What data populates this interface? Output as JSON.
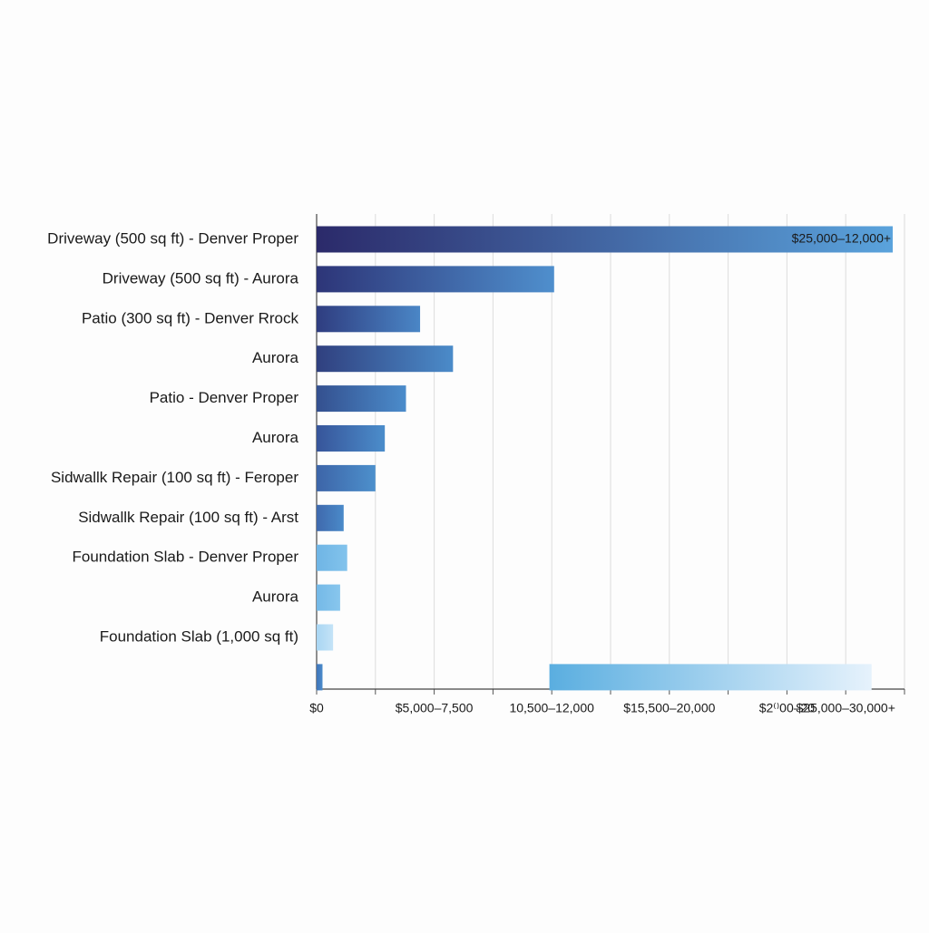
{
  "chart_data": {
    "type": "hbar",
    "categories": [
      "Driveway (500 sq ft) - Denver Proper",
      "Driveway (500 sq ft)   - Aurora",
      "Patio (300 sq ft) - Denver Rrock",
      "Aurora",
      "Patio - Denver Proper",
      "Aurora",
      "Sidwallk Repair (100 sq ft) - Feroper",
      "Sidwallk Repair (100 sq ft) - Arst",
      "Foundation Slab - Denver Proper",
      "Aurora",
      "Foundation Slab (1,000 sq ft)",
      null
    ],
    "values": [
      24500,
      10100,
      4400,
      5800,
      3800,
      2900,
      2500,
      1150,
      1300,
      1000,
      700,
      250
    ],
    "value_labels": [
      "$25,000–12,000+",
      null,
      null,
      null,
      null,
      null,
      null,
      null,
      null,
      null,
      null,
      null
    ],
    "colors": [
      [
        "#2b2a6a",
        "#5aa3dc"
      ],
      [
        "#2d3578",
        "#4f8fcd"
      ],
      [
        "#2f3d80",
        "#4a86c6"
      ],
      [
        "#30407f",
        "#4b8bc9"
      ],
      [
        "#34508f",
        "#4b8ccb"
      ],
      [
        "#37559a",
        "#4b8dcb"
      ],
      [
        "#3d65a8",
        "#4d90cc"
      ],
      [
        "#3f69ad",
        "#4a8ac9"
      ],
      [
        "#6fb5e5",
        "#82c3ec"
      ],
      [
        "#74b9e7",
        "#88c6ed"
      ],
      [
        "#a9d6f3",
        "#c4e3f7"
      ],
      [
        "#3f75b9",
        "#4b8bcb"
      ]
    ],
    "floating_bar": {
      "start": 9900,
      "end": 23600,
      "colors": [
        "#5aaee0",
        "#e6f2fc"
      ]
    },
    "xlim": [
      0,
      25000
    ],
    "xticks": [
      {
        "value": 0,
        "label": "$0"
      },
      {
        "value": 2500,
        "label": null
      },
      {
        "value": 5000,
        "label": "$5,000–7,500"
      },
      {
        "value": 7500,
        "label": null
      },
      {
        "value": 10000,
        "label": "10,500–12,000"
      },
      {
        "value": 12500,
        "label": null
      },
      {
        "value": 15000,
        "label": "$15,500–20,000"
      },
      {
        "value": 17500,
        "label": null
      },
      {
        "value": 20000,
        "label": "$2⁽⁾00–20"
      },
      {
        "value": 22500,
        "label": "$25,000–30,000+"
      },
      {
        "value": 25000,
        "label": null
      }
    ],
    "grid": true
  }
}
